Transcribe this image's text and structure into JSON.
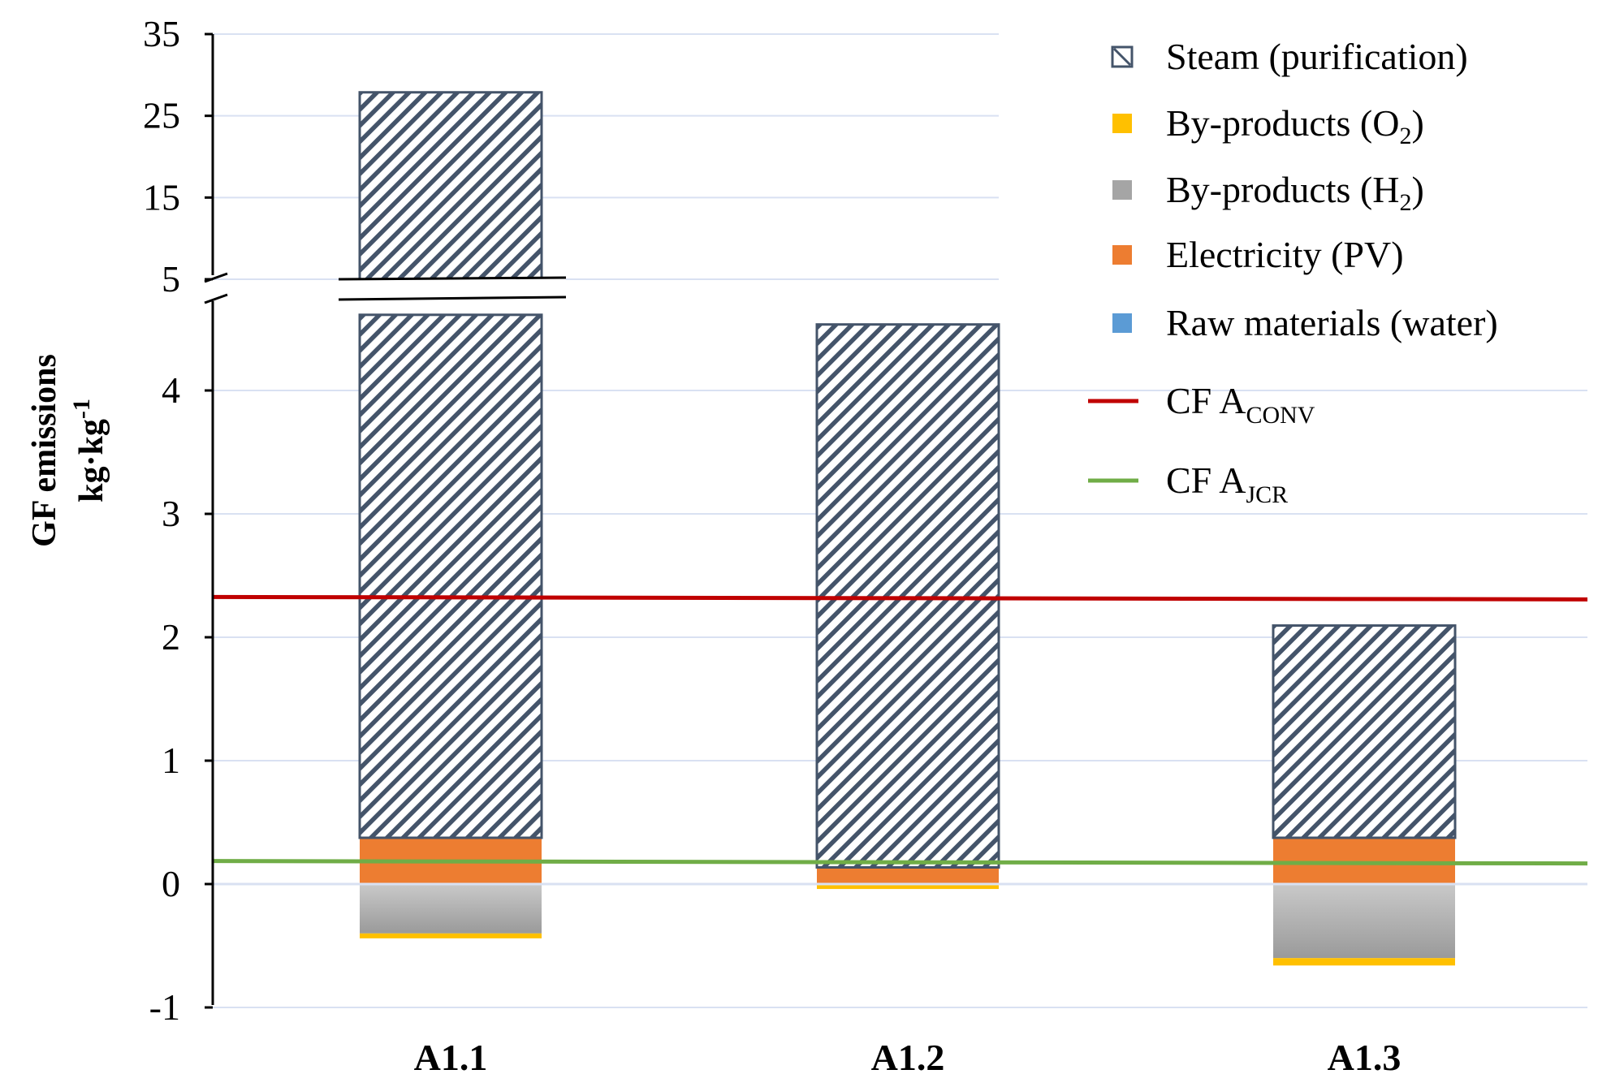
{
  "chart_data": {
    "type": "bar",
    "stacked": true,
    "broken_y_axis": true,
    "ylabel_line1": "GF emissions",
    "ylabel_line2_main": "kg·kg",
    "ylabel_line2_sup": "-1",
    "categories": [
      "A1.1",
      "A1.2",
      "A1.3"
    ],
    "y_ticks_lower": [
      "-1",
      "0",
      "1",
      "2",
      "3",
      "4"
    ],
    "y_ticks_upper": [
      "5",
      "15",
      "25",
      "35"
    ],
    "ylim_lower": [
      -1,
      4.6
    ],
    "ylim_upper": [
      5,
      35
    ],
    "grid": true,
    "legend_position": "top-right",
    "series": [
      {
        "name": "Raw materials (water)",
        "label_main": "Raw materials  (water)",
        "color": "#5b9bd5",
        "pattern": "none",
        "values": [
          0.005,
          0.005,
          0.005
        ]
      },
      {
        "name": "Electricity (PV)",
        "label_main": "Electricity  (PV)",
        "color": "#ed7d31",
        "pattern": "none",
        "values": [
          0.37,
          0.13,
          0.37
        ]
      },
      {
        "name": "Steam (purification)",
        "label_main": "Steam (purification)",
        "color": "#44546a",
        "pattern": "diagonal-hatch",
        "values": [
          27.5,
          4.4,
          1.72
        ]
      },
      {
        "name": "By-products (H2)",
        "label_main": "By-products  (H",
        "label_sub": "2",
        "label_tail": ")",
        "color": "#a5a5a5",
        "pattern": "none",
        "values": [
          -0.4,
          0,
          -0.6
        ]
      },
      {
        "name": "By-products (O2)",
        "label_main": "By-products  (O",
        "label_sub": "2",
        "label_tail": ")",
        "color": "#ffc000",
        "pattern": "none",
        "values": [
          -0.04,
          -0.04,
          -0.06
        ]
      }
    ],
    "legend_order": [
      "Steam (purification)",
      "By-products (O2)",
      "By-products (H2)",
      "Electricity (PV)",
      "Raw materials (water)"
    ],
    "reference_lines": [
      {
        "name": "CF A_CONV",
        "label_main": "CF A",
        "label_sub": "CONV",
        "value": 2.32,
        "color": "#c00000"
      },
      {
        "name": "CF A_JCR",
        "label_main": "CF A",
        "label_sub": "JCR",
        "value": 0.18,
        "color": "#70ad47"
      }
    ]
  }
}
